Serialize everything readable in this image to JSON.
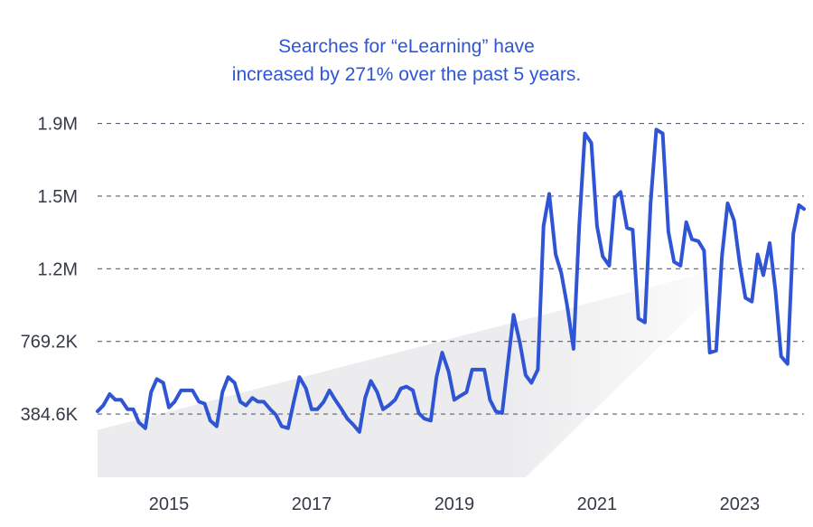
{
  "chart_data": {
    "type": "line",
    "title_line1": "Searches for “eLearning” have",
    "title_line2": "increased by 271% over the past 5 years.",
    "xlabel": "",
    "ylabel": "",
    "xlim": [
      2014.0,
      2023.9
    ],
    "ylim": [
      50000,
      2050000
    ],
    "y_ticks": [
      {
        "value": 384600,
        "label": "384.6K"
      },
      {
        "value": 769200,
        "label": "769.2K"
      },
      {
        "value": 1153800,
        "label": "1.2M"
      },
      {
        "value": 1538400,
        "label": "1.5M"
      },
      {
        "value": 1923000,
        "label": "1.9M"
      }
    ],
    "x_ticks": [
      {
        "value": 2015,
        "label": "2015"
      },
      {
        "value": 2017,
        "label": "2017"
      },
      {
        "value": 2019,
        "label": "2019"
      },
      {
        "value": 2021,
        "label": "2021"
      },
      {
        "value": 2023,
        "label": "2023"
      }
    ],
    "grid": "horizontal-dashed",
    "line_color": "#2f55d4",
    "grid_color": "#5a6275",
    "trend_fill_color": "#ececee",
    "trend": {
      "x": [
        2014.0,
        2022.5,
        2023.3
      ],
      "lower": [
        50000,
        50000,
        50000
      ],
      "upper": [
        300000,
        1130000,
        1270000
      ],
      "end_x": 2020.0
    },
    "series": [
      {
        "name": "",
        "x": [
          2014.0,
          2014.08,
          2014.17,
          2014.25,
          2014.33,
          2014.42,
          2014.5,
          2014.58,
          2014.67,
          2014.75,
          2014.83,
          2014.92,
          2015.0,
          2015.08,
          2015.17,
          2015.25,
          2015.33,
          2015.42,
          2015.5,
          2015.58,
          2015.67,
          2015.75,
          2015.83,
          2015.92,
          2016.0,
          2016.08,
          2016.17,
          2016.25,
          2016.33,
          2016.42,
          2016.5,
          2016.58,
          2016.67,
          2016.75,
          2016.83,
          2016.92,
          2017.0,
          2017.08,
          2017.17,
          2017.25,
          2017.33,
          2017.42,
          2017.5,
          2017.58,
          2017.67,
          2017.75,
          2017.83,
          2017.92,
          2018.0,
          2018.08,
          2018.17,
          2018.25,
          2018.33,
          2018.42,
          2018.5,
          2018.58,
          2018.67,
          2018.75,
          2018.83,
          2018.92,
          2019.0,
          2019.08,
          2019.17,
          2019.25,
          2019.33,
          2019.42,
          2019.5,
          2019.58,
          2019.67,
          2019.75,
          2019.83,
          2019.92,
          2020.0,
          2020.08,
          2020.17,
          2020.25,
          2020.33,
          2020.42,
          2020.5,
          2020.58,
          2020.67,
          2020.75,
          2020.83,
          2020.92,
          2021.0,
          2021.08,
          2021.17,
          2021.25,
          2021.33,
          2021.42,
          2021.5,
          2021.58,
          2021.67,
          2021.75,
          2021.83,
          2021.92,
          2022.0,
          2022.08,
          2022.17,
          2022.25,
          2022.33,
          2022.42,
          2022.5,
          2022.58,
          2022.67,
          2022.75,
          2022.83,
          2022.92,
          2023.0,
          2023.08,
          2023.17,
          2023.25,
          2023.33,
          2023.42,
          2023.5,
          2023.58,
          2023.67,
          2023.75,
          2023.83,
          2023.9
        ],
        "values": [
          400000,
          430000,
          490000,
          460000,
          460000,
          410000,
          410000,
          340000,
          310000,
          500000,
          570000,
          550000,
          420000,
          450000,
          510000,
          510000,
          510000,
          450000,
          440000,
          350000,
          320000,
          500000,
          580000,
          550000,
          450000,
          430000,
          470000,
          450000,
          450000,
          410000,
          380000,
          320000,
          310000,
          450000,
          580000,
          520000,
          410000,
          410000,
          450000,
          510000,
          460000,
          410000,
          360000,
          330000,
          290000,
          470000,
          560000,
          500000,
          410000,
          430000,
          460000,
          520000,
          530000,
          510000,
          390000,
          360000,
          350000,
          580000,
          710000,
          610000,
          460000,
          480000,
          500000,
          620000,
          620000,
          620000,
          460000,
          400000,
          390000,
          650000,
          910000,
          760000,
          590000,
          550000,
          620000,
          1380000,
          1550000,
          1230000,
          1130000,
          960000,
          730000,
          1380000,
          1870000,
          1820000,
          1380000,
          1220000,
          1170000,
          1530000,
          1560000,
          1370000,
          1360000,
          890000,
          870000,
          1500000,
          1890000,
          1870000,
          1350000,
          1190000,
          1170000,
          1400000,
          1310000,
          1300000,
          1250000,
          710000,
          720000,
          1220000,
          1500000,
          1410000,
          1180000,
          1000000,
          980000,
          1230000,
          1120000,
          1290000,
          1040000,
          690000,
          650000,
          1340000,
          1490000,
          1470000
        ]
      }
    ]
  }
}
